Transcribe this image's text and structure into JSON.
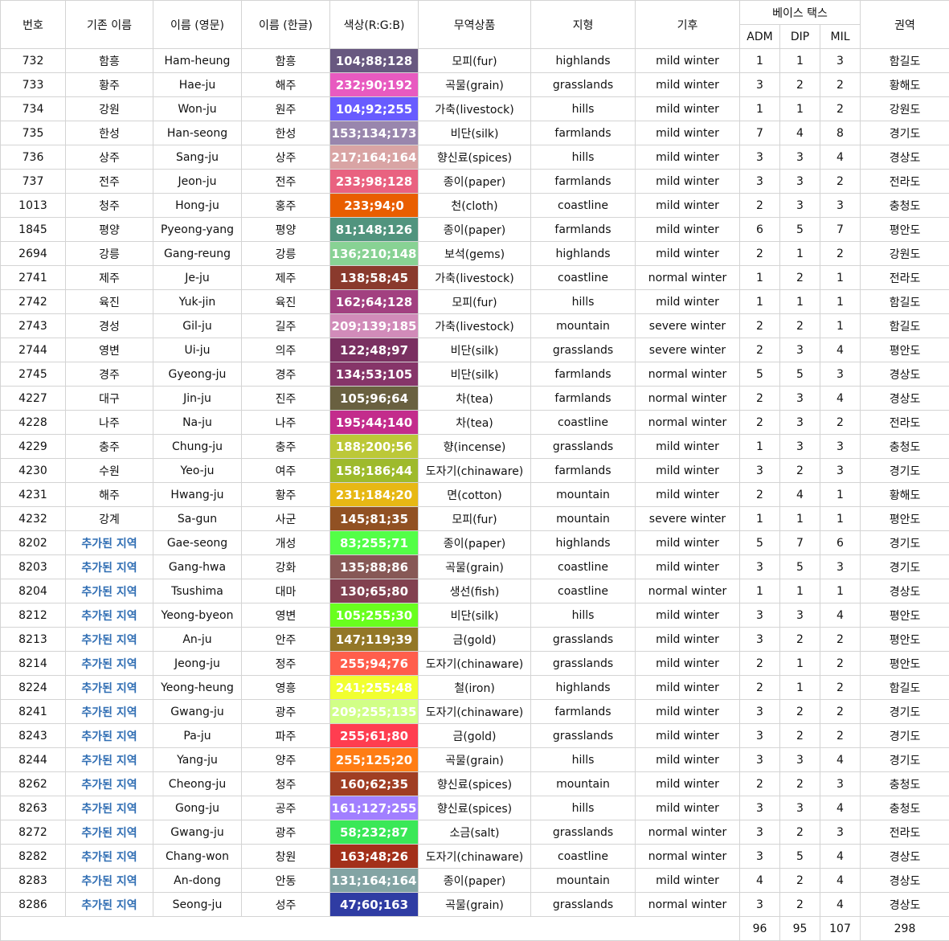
{
  "headers": {
    "num": "번호",
    "old": "기존 이름",
    "en": "이름 (영문)",
    "ko": "이름 (한글)",
    "color": "색상(R:G:B)",
    "trade": "무역상품",
    "terrain": "지형",
    "climate": "기후",
    "tax": "베이스 택스",
    "adm": "ADM",
    "dip": "DIP",
    "mil": "MIL",
    "region": "권역"
  },
  "rows": [
    {
      "num": "732",
      "old": "함흥",
      "added": false,
      "en": "Ham-heung",
      "ko": "함흥",
      "rgb": "104;88;128",
      "bg": "#685880",
      "trade": "모피(fur)",
      "terrain": "highlands",
      "climate": "mild winter",
      "adm": "1",
      "dip": "1",
      "mil": "3",
      "region": "함길도"
    },
    {
      "num": "733",
      "old": "황주",
      "added": false,
      "en": "Hae-ju",
      "ko": "해주",
      "rgb": "232;90;192",
      "bg": "#e85ac0",
      "trade": "곡물(grain)",
      "terrain": "grasslands",
      "climate": "mild winter",
      "adm": "3",
      "dip": "2",
      "mil": "2",
      "region": "황해도"
    },
    {
      "num": "734",
      "old": "강원",
      "added": false,
      "en": "Won-ju",
      "ko": "원주",
      "rgb": "104;92;255",
      "bg": "#685cff",
      "trade": "가축(livestock)",
      "terrain": "hills",
      "climate": "mild winter",
      "adm": "1",
      "dip": "1",
      "mil": "2",
      "region": "강원도"
    },
    {
      "num": "735",
      "old": "한성",
      "added": false,
      "en": "Han-seong",
      "ko": "한성",
      "rgb": "153;134;173",
      "bg": "#9986ad",
      "trade": "비단(silk)",
      "terrain": "farmlands",
      "climate": "mild winter",
      "adm": "7",
      "dip": "4",
      "mil": "8",
      "region": "경기도"
    },
    {
      "num": "736",
      "old": "상주",
      "added": false,
      "en": "Sang-ju",
      "ko": "상주",
      "rgb": "217;164;164",
      "bg": "#d9a4a4",
      "trade": "향신료(spices)",
      "terrain": "hills",
      "climate": "mild winter",
      "adm": "3",
      "dip": "3",
      "mil": "4",
      "region": "경상도"
    },
    {
      "num": "737",
      "old": "전주",
      "added": false,
      "en": "Jeon-ju",
      "ko": "전주",
      "rgb": "233;98;128",
      "bg": "#e96280",
      "trade": "종이(paper)",
      "terrain": "farmlands",
      "climate": "mild winter",
      "adm": "3",
      "dip": "3",
      "mil": "2",
      "region": "전라도"
    },
    {
      "num": "1013",
      "old": "청주",
      "added": false,
      "en": "Hong-ju",
      "ko": "홍주",
      "rgb": "233;94;0",
      "bg": "#e95e00",
      "trade": "천(cloth)",
      "terrain": "coastline",
      "climate": "mild winter",
      "adm": "2",
      "dip": "3",
      "mil": "3",
      "region": "충청도"
    },
    {
      "num": "1845",
      "old": "평양",
      "added": false,
      "en": "Pyeong-yang",
      "ko": "평양",
      "rgb": "81;148;126",
      "bg": "#51947e",
      "trade": "종이(paper)",
      "terrain": "farmlands",
      "climate": "mild winter",
      "adm": "6",
      "dip": "5",
      "mil": "7",
      "region": "평안도"
    },
    {
      "num": "2694",
      "old": "강릉",
      "added": false,
      "en": "Gang-reung",
      "ko": "강릉",
      "rgb": "136;210;148",
      "bg": "#88d294",
      "trade": "보석(gems)",
      "terrain": "highlands",
      "climate": "mild winter",
      "adm": "2",
      "dip": "1",
      "mil": "2",
      "region": "강원도"
    },
    {
      "num": "2741",
      "old": "제주",
      "added": false,
      "en": "Je-ju",
      "ko": "제주",
      "rgb": "138;58;45",
      "bg": "#8a3a2d",
      "trade": "가축(livestock)",
      "terrain": "coastline",
      "climate": "normal winter",
      "adm": "1",
      "dip": "2",
      "mil": "1",
      "region": "전라도"
    },
    {
      "num": "2742",
      "old": "육진",
      "added": false,
      "en": "Yuk-jin",
      "ko": "육진",
      "rgb": "162;64;128",
      "bg": "#a24080",
      "trade": "모피(fur)",
      "terrain": "hills",
      "climate": "mild winter",
      "adm": "1",
      "dip": "1",
      "mil": "1",
      "region": "함길도"
    },
    {
      "num": "2743",
      "old": "경성",
      "added": false,
      "en": "Gil-ju",
      "ko": "길주",
      "rgb": "209;139;185",
      "bg": "#d18bb9",
      "trade": "가축(livestock)",
      "terrain": "mountain",
      "climate": "severe winter",
      "adm": "2",
      "dip": "2",
      "mil": "1",
      "region": "함길도"
    },
    {
      "num": "2744",
      "old": "영변",
      "added": false,
      "en": "Ui-ju",
      "ko": "의주",
      "rgb": "122;48;97",
      "bg": "#7a3061",
      "trade": "비단(silk)",
      "terrain": "grasslands",
      "climate": "severe winter",
      "adm": "2",
      "dip": "3",
      "mil": "4",
      "region": "평안도"
    },
    {
      "num": "2745",
      "old": "경주",
      "added": false,
      "en": "Gyeong-ju",
      "ko": "경주",
      "rgb": "134;53;105",
      "bg": "#863569",
      "trade": "비단(silk)",
      "terrain": "farmlands",
      "climate": "normal winter",
      "adm": "5",
      "dip": "5",
      "mil": "3",
      "region": "경상도"
    },
    {
      "num": "4227",
      "old": "대구",
      "added": false,
      "en": "Jin-ju",
      "ko": "진주",
      "rgb": "105;96;64",
      "bg": "#696040",
      "trade": "차(tea)",
      "terrain": "farmlands",
      "climate": "normal winter",
      "adm": "2",
      "dip": "3",
      "mil": "4",
      "region": "경상도"
    },
    {
      "num": "4228",
      "old": "나주",
      "added": false,
      "en": "Na-ju",
      "ko": "나주",
      "rgb": "195;44;140",
      "bg": "#c32c8c",
      "trade": "차(tea)",
      "terrain": "coastline",
      "climate": "normal winter",
      "adm": "2",
      "dip": "3",
      "mil": "2",
      "region": "전라도"
    },
    {
      "num": "4229",
      "old": "충주",
      "added": false,
      "en": "Chung-ju",
      "ko": "충주",
      "rgb": "188;200;56",
      "bg": "#bcc838",
      "trade": "향(incense)",
      "terrain": "grasslands",
      "climate": "mild winter",
      "adm": "1",
      "dip": "3",
      "mil": "3",
      "region": "충청도"
    },
    {
      "num": "4230",
      "old": "수원",
      "added": false,
      "en": "Yeo-ju",
      "ko": "여주",
      "rgb": "158;186;44",
      "bg": "#9eba2c",
      "trade": "도자기(chinaware)",
      "terrain": "farmlands",
      "climate": "mild winter",
      "adm": "3",
      "dip": "2",
      "mil": "3",
      "region": "경기도"
    },
    {
      "num": "4231",
      "old": "해주",
      "added": false,
      "en": "Hwang-ju",
      "ko": "황주",
      "rgb": "231;184;20",
      "bg": "#e7b814",
      "trade": "면(cotton)",
      "terrain": "mountain",
      "climate": "mild winter",
      "adm": "2",
      "dip": "4",
      "mil": "1",
      "region": "황해도"
    },
    {
      "num": "4232",
      "old": "강계",
      "added": false,
      "en": "Sa-gun",
      "ko": "사군",
      "rgb": "145;81;35",
      "bg": "#915123",
      "trade": "모피(fur)",
      "terrain": "mountain",
      "climate": "severe winter",
      "adm": "1",
      "dip": "1",
      "mil": "1",
      "region": "평안도"
    },
    {
      "num": "8202",
      "old": "추가된 지역",
      "added": true,
      "en": "Gae-seong",
      "ko": "개성",
      "rgb": "83;255;71",
      "bg": "#53ff47",
      "trade": "종이(paper)",
      "terrain": "highlands",
      "climate": "mild winter",
      "adm": "5",
      "dip": "7",
      "mil": "6",
      "region": "경기도"
    },
    {
      "num": "8203",
      "old": "추가된 지역",
      "added": true,
      "en": "Gang-hwa",
      "ko": "강화",
      "rgb": "135;88;86",
      "bg": "#875856",
      "trade": "곡물(grain)",
      "terrain": "coastline",
      "climate": "mild winter",
      "adm": "3",
      "dip": "5",
      "mil": "3",
      "region": "경기도"
    },
    {
      "num": "8204",
      "old": "추가된 지역",
      "added": true,
      "en": "Tsushima",
      "ko": "대마",
      "rgb": "130;65;80",
      "bg": "#824150",
      "trade": "생선(fish)",
      "terrain": "coastline",
      "climate": "normal winter",
      "adm": "1",
      "dip": "1",
      "mil": "1",
      "region": "경상도"
    },
    {
      "num": "8212",
      "old": "추가된 지역",
      "added": true,
      "en": "Yeong-byeon",
      "ko": "영변",
      "rgb": "105;255;30",
      "bg": "#69ff1e",
      "trade": "비단(silk)",
      "terrain": "hills",
      "climate": "mild winter",
      "adm": "3",
      "dip": "3",
      "mil": "4",
      "region": "평안도"
    },
    {
      "num": "8213",
      "old": "추가된 지역",
      "added": true,
      "en": "An-ju",
      "ko": "안주",
      "rgb": "147;119;39",
      "bg": "#937727",
      "trade": "금(gold)",
      "terrain": "grasslands",
      "climate": "mild winter",
      "adm": "3",
      "dip": "2",
      "mil": "2",
      "region": "평안도"
    },
    {
      "num": "8214",
      "old": "추가된 지역",
      "added": true,
      "en": "Jeong-ju",
      "ko": "정주",
      "rgb": "255;94;76",
      "bg": "#ff5e4c",
      "trade": "도자기(chinaware)",
      "terrain": "grasslands",
      "climate": "mild winter",
      "adm": "2",
      "dip": "1",
      "mil": "2",
      "region": "평안도"
    },
    {
      "num": "8224",
      "old": "추가된 지역",
      "added": true,
      "en": "Yeong-heung",
      "ko": "영흥",
      "rgb": "241;255;48",
      "bg": "#f1ff30",
      "trade": "철(iron)",
      "terrain": "highlands",
      "climate": "mild winter",
      "adm": "2",
      "dip": "1",
      "mil": "2",
      "region": "함길도"
    },
    {
      "num": "8241",
      "old": "추가된 지역",
      "added": true,
      "en": "Gwang-ju",
      "ko": "광주",
      "rgb": "209;255;135",
      "bg": "#d1ff87",
      "trade": "도자기(chinaware)",
      "terrain": "farmlands",
      "climate": "mild winter",
      "adm": "3",
      "dip": "2",
      "mil": "2",
      "region": "경기도"
    },
    {
      "num": "8243",
      "old": "추가된 지역",
      "added": true,
      "en": "Pa-ju",
      "ko": "파주",
      "rgb": "255;61;80",
      "bg": "#ff3d50",
      "trade": "금(gold)",
      "terrain": "grasslands",
      "climate": "mild winter",
      "adm": "3",
      "dip": "2",
      "mil": "2",
      "region": "경기도"
    },
    {
      "num": "8244",
      "old": "추가된 지역",
      "added": true,
      "en": "Yang-ju",
      "ko": "양주",
      "rgb": "255;125;20",
      "bg": "#ff7d14",
      "trade": "곡물(grain)",
      "terrain": "hills",
      "climate": "mild winter",
      "adm": "3",
      "dip": "3",
      "mil": "4",
      "region": "경기도"
    },
    {
      "num": "8262",
      "old": "추가된 지역",
      "added": true,
      "en": "Cheong-ju",
      "ko": "청주",
      "rgb": "160;62;35",
      "bg": "#a03e23",
      "trade": "향신료(spices)",
      "terrain": "mountain",
      "climate": "mild winter",
      "adm": "2",
      "dip": "2",
      "mil": "3",
      "region": "충청도"
    },
    {
      "num": "8263",
      "old": "추가된 지역",
      "added": true,
      "en": "Gong-ju",
      "ko": "공주",
      "rgb": "161;127;255",
      "bg": "#a17fff",
      "trade": "향신료(spices)",
      "terrain": "hills",
      "climate": "mild winter",
      "adm": "3",
      "dip": "3",
      "mil": "4",
      "region": "충청도"
    },
    {
      "num": "8272",
      "old": "추가된 지역",
      "added": true,
      "en": "Gwang-ju",
      "ko": "광주",
      "rgb": "58;232;87",
      "bg": "#3ae857",
      "trade": "소금(salt)",
      "terrain": "grasslands",
      "climate": "normal winter",
      "adm": "3",
      "dip": "2",
      "mil": "3",
      "region": "전라도"
    },
    {
      "num": "8282",
      "old": "추가된 지역",
      "added": true,
      "en": "Chang-won",
      "ko": "창원",
      "rgb": "163;48;26",
      "bg": "#a3301a",
      "trade": "도자기(chinaware)",
      "terrain": "coastline",
      "climate": "normal winter",
      "adm": "3",
      "dip": "5",
      "mil": "4",
      "region": "경상도"
    },
    {
      "num": "8283",
      "old": "추가된 지역",
      "added": true,
      "en": "An-dong",
      "ko": "안동",
      "rgb": "131;164;164",
      "bg": "#83a4a4",
      "trade": "종이(paper)",
      "terrain": "mountain",
      "climate": "mild winter",
      "adm": "4",
      "dip": "2",
      "mil": "4",
      "region": "경상도"
    },
    {
      "num": "8286",
      "old": "추가된 지역",
      "added": true,
      "en": "Seong-ju",
      "ko": "성주",
      "rgb": "47;60;163",
      "bg": "#2f3ca3",
      "trade": "곡물(grain)",
      "terrain": "grasslands",
      "climate": "normal winter",
      "adm": "3",
      "dip": "2",
      "mil": "4",
      "region": "경상도"
    }
  ],
  "totals": {
    "adm": "96",
    "dip": "95",
    "mil": "107",
    "region": "298"
  }
}
